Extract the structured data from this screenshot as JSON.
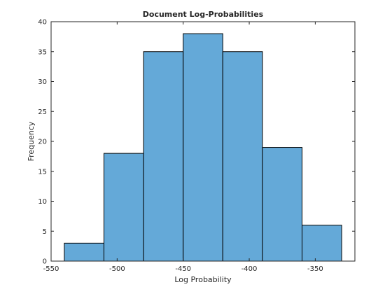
{
  "chart_data": {
    "type": "bar",
    "title": "Document Log-Probabilities",
    "xlabel": "Log Probability",
    "ylabel": "Frequency",
    "xlim": [
      -550,
      -320
    ],
    "ylim": [
      0,
      40
    ],
    "xticks": [
      -550,
      -500,
      -450,
      -400,
      -350
    ],
    "yticks": [
      0,
      5,
      10,
      15,
      20,
      25,
      30,
      35,
      40
    ],
    "bins": [
      {
        "start": -540,
        "end": -510,
        "value": 3
      },
      {
        "start": -510,
        "end": -480,
        "value": 18
      },
      {
        "start": -480,
        "end": -450,
        "value": 35
      },
      {
        "start": -450,
        "end": -420,
        "value": 38
      },
      {
        "start": -420,
        "end": -390,
        "value": 35
      },
      {
        "start": -390,
        "end": -360,
        "value": 19
      },
      {
        "start": -360,
        "end": -330,
        "value": 6
      }
    ],
    "bar_color": "#64a9d8",
    "edge_color": "#000000",
    "grid": false
  }
}
